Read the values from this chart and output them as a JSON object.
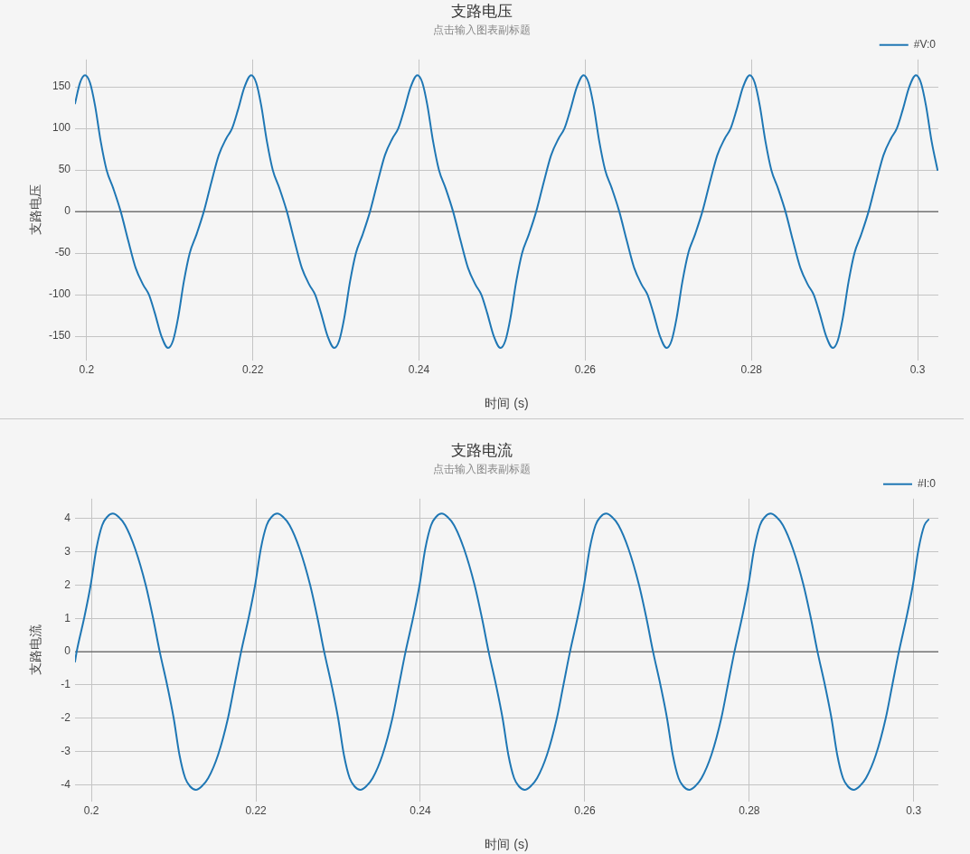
{
  "chart_data": [
    {
      "type": "line",
      "title": "支路电压",
      "subtitle": "点击输入图表副标题",
      "xlabel": "时间 (s)",
      "ylabel": "支路电压",
      "x": [
        0.1986,
        0.1992,
        0.1998,
        0.2004,
        0.201,
        0.2017,
        0.2024,
        0.2032,
        0.2041,
        0.205,
        0.2059,
        0.2068,
        0.2075,
        0.2082,
        0.209,
        0.2098,
        0.2104,
        0.211,
        0.2117,
        0.2124,
        0.2132,
        0.2141,
        0.215,
        0.2159,
        0.2168,
        0.2175,
        0.2182,
        0.219,
        0.2198,
        0.2204,
        0.221,
        0.2217,
        0.2224,
        0.2232,
        0.2241,
        0.225,
        0.2259,
        0.2268,
        0.2275,
        0.2282,
        0.229,
        0.2298,
        0.2304,
        0.231,
        0.2317,
        0.2324,
        0.2332,
        0.2341,
        0.235,
        0.2359,
        0.2368,
        0.2375,
        0.2382,
        0.239,
        0.2398,
        0.2404,
        0.241,
        0.2417,
        0.2424,
        0.2432,
        0.2441,
        0.245,
        0.2459,
        0.2468,
        0.2475,
        0.2482,
        0.249,
        0.2498,
        0.2504,
        0.251,
        0.2517,
        0.2524,
        0.2532,
        0.2541,
        0.255,
        0.2559,
        0.2568,
        0.2575,
        0.2582,
        0.259,
        0.2598,
        0.2604,
        0.261,
        0.2617,
        0.2624,
        0.2632,
        0.2641,
        0.265,
        0.2659,
        0.2668,
        0.2675,
        0.2682,
        0.269,
        0.2698,
        0.2704,
        0.271,
        0.2717,
        0.2724,
        0.2732,
        0.2741,
        0.275,
        0.2759,
        0.2768,
        0.2775,
        0.2782,
        0.279,
        0.2798,
        0.2804,
        0.281,
        0.2817,
        0.2824,
        0.2832,
        0.2841,
        0.285,
        0.2859,
        0.2868,
        0.2875,
        0.2882,
        0.289,
        0.2898,
        0.2904,
        0.291,
        0.2917,
        0.2924,
        0.2932,
        0.2941,
        0.295,
        0.2959,
        0.2968,
        0.2975,
        0.2982,
        0.299,
        0.2998,
        0.3004,
        0.301,
        0.3017,
        0.3024
      ],
      "series": [
        {
          "name": "#V:0",
          "color": "#1f77b4",
          "values": [
            130,
            155,
            164,
            155,
            128,
            84,
            50,
            28,
            0,
            -35,
            -68,
            -88,
            -100,
            -122,
            -150,
            -164,
            -155,
            -128,
            -84,
            -50,
            -28,
            0,
            35,
            68,
            88,
            100,
            122,
            150,
            164,
            155,
            128,
            84,
            50,
            28,
            0,
            -35,
            -68,
            -88,
            -100,
            -122,
            -150,
            -164,
            -155,
            -128,
            -84,
            -50,
            -28,
            0,
            35,
            68,
            88,
            100,
            122,
            150,
            164,
            155,
            128,
            84,
            50,
            28,
            0,
            -35,
            -68,
            -88,
            -100,
            -122,
            -150,
            -164,
            -155,
            -128,
            -84,
            -50,
            -28,
            0,
            35,
            68,
            88,
            100,
            122,
            150,
            164,
            155,
            128,
            84,
            50,
            28,
            0,
            -35,
            -68,
            -88,
            -100,
            -122,
            -150,
            -164,
            -155,
            -128,
            -84,
            -50,
            -28,
            0,
            35,
            68,
            88,
            100,
            122,
            150,
            164,
            155,
            128,
            84,
            50,
            28,
            0,
            -35,
            -68,
            -88,
            -100,
            -122,
            -150,
            -164,
            -155,
            -128,
            -84,
            -50,
            -28,
            0,
            35,
            68,
            88,
            100,
            122,
            150,
            164,
            155,
            128,
            84,
            50
          ]
        }
      ],
      "xlim": [
        0.1986,
        0.3025
      ],
      "ylim": [
        -179,
        183
      ],
      "xticks": [
        0.2,
        0.22,
        0.24,
        0.26,
        0.28,
        0.3
      ],
      "yticks": [
        -150,
        -100,
        -50,
        0,
        50,
        100,
        150
      ],
      "grid": true,
      "legend": "top right",
      "line_style": "solid",
      "ref_lines": [
        {
          "axis": "y",
          "value": 0,
          "color": "#444444"
        }
      ]
    },
    {
      "type": "line",
      "title": "支路电流",
      "subtitle": "点击输入图表副标题",
      "xlabel": "时间 (s)",
      "ylabel": "支路电流",
      "x": [
        0.198,
        0.1982,
        0.1991,
        0.1999,
        0.2006,
        0.2013,
        0.2019,
        0.2026,
        0.2033,
        0.2041,
        0.2053,
        0.2066,
        0.2075,
        0.2083,
        0.2092,
        0.21,
        0.2107,
        0.2114,
        0.212,
        0.2127,
        0.2134,
        0.2142,
        0.2154,
        0.2166,
        0.2174,
        0.2182,
        0.2191,
        0.2199,
        0.2206,
        0.2213,
        0.2219,
        0.2226,
        0.2233,
        0.2241,
        0.2253,
        0.2266,
        0.2275,
        0.2283,
        0.2292,
        0.23,
        0.2307,
        0.2314,
        0.232,
        0.2327,
        0.2334,
        0.2342,
        0.2354,
        0.2366,
        0.2374,
        0.2382,
        0.2391,
        0.2399,
        0.2406,
        0.2413,
        0.2419,
        0.2426,
        0.2433,
        0.2441,
        0.2453,
        0.2466,
        0.2475,
        0.2483,
        0.2492,
        0.25,
        0.2507,
        0.2514,
        0.252,
        0.2527,
        0.2534,
        0.2542,
        0.2554,
        0.2566,
        0.2574,
        0.2582,
        0.2591,
        0.2599,
        0.2606,
        0.2613,
        0.2619,
        0.2626,
        0.2633,
        0.2641,
        0.2653,
        0.2666,
        0.2675,
        0.2683,
        0.2692,
        0.27,
        0.2707,
        0.2714,
        0.272,
        0.2727,
        0.2734,
        0.2742,
        0.2754,
        0.2766,
        0.2774,
        0.2782,
        0.2791,
        0.2799,
        0.2806,
        0.2813,
        0.2819,
        0.2826,
        0.2833,
        0.2841,
        0.2853,
        0.2866,
        0.2875,
        0.2883,
        0.2892,
        0.29,
        0.2907,
        0.2914,
        0.292,
        0.2927,
        0.2934,
        0.2942,
        0.2954,
        0.2966,
        0.2974,
        0.2982,
        0.2991,
        0.2999,
        0.3006,
        0.3013,
        0.3018
      ],
      "series": [
        {
          "name": "#I:0",
          "color": "#1f77b4",
          "values": [
            -0.3,
            0,
            1,
            2,
            3.1,
            3.8,
            4.05,
            4.15,
            4.05,
            3.8,
            3.1,
            2,
            1,
            0,
            -1,
            -2,
            -3.1,
            -3.8,
            -4.05,
            -4.15,
            -4.05,
            -3.8,
            -3.1,
            -2,
            -1,
            0,
            1,
            2,
            3.1,
            3.8,
            4.05,
            4.15,
            4.05,
            3.8,
            3.1,
            2,
            1,
            0,
            -1,
            -2,
            -3.1,
            -3.8,
            -4.05,
            -4.15,
            -4.05,
            -3.8,
            -3.1,
            -2,
            -1,
            0,
            1,
            2,
            3.1,
            3.8,
            4.05,
            4.15,
            4.05,
            3.8,
            3.1,
            2,
            1,
            0,
            -1,
            -2,
            -3.1,
            -3.8,
            -4.05,
            -4.15,
            -4.05,
            -3.8,
            -3.1,
            -2,
            -1,
            0,
            1,
            2,
            3.1,
            3.8,
            4.05,
            4.15,
            4.05,
            3.8,
            3.1,
            2,
            1,
            0,
            -1,
            -2,
            -3.1,
            -3.8,
            -4.05,
            -4.15,
            -4.05,
            -3.8,
            -3.1,
            -2,
            -1,
            0,
            1,
            2,
            3.1,
            3.8,
            4.05,
            4.15,
            4.05,
            3.8,
            3.1,
            2,
            1,
            0,
            -1,
            -2,
            -3.1,
            -3.8,
            -4.05,
            -4.15,
            -4.05,
            -3.8,
            -3.1,
            -2,
            -1,
            0,
            1,
            2,
            3.1,
            3.8,
            3.97
          ]
        }
      ],
      "xlim": [
        0.198,
        0.303
      ],
      "ylim": [
        -4.5,
        4.6
      ],
      "xticks": [
        0.2,
        0.22,
        0.24,
        0.26,
        0.28,
        0.3
      ],
      "yticks": [
        -4,
        -3,
        -2,
        -1,
        0,
        1,
        2,
        3,
        4
      ],
      "grid": true,
      "legend": "top right",
      "line_style": "solid",
      "ref_lines": [
        {
          "axis": "y",
          "value": 0,
          "color": "#444444"
        }
      ]
    }
  ]
}
